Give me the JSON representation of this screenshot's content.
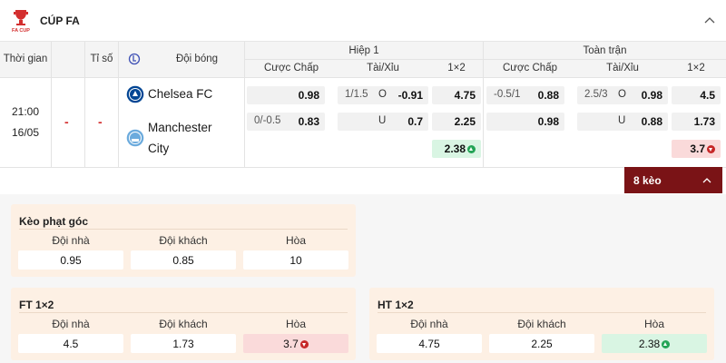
{
  "league": {
    "title": "CÚP FA",
    "logo_icon": "fa-cup-icon",
    "logo_text": "FA CUP"
  },
  "table_header": {
    "time": "Thời gian",
    "blank": "",
    "score": "Tỉ số",
    "live_icon": "live-stream-icon",
    "team": "Đội bóng",
    "half1": "Hiệp 1",
    "full": "Toàn trận",
    "handicap": "Cược Chấp",
    "over_under": "Tài/Xỉu",
    "one_x_two": "1×2"
  },
  "match": {
    "time": "21:00",
    "date": "16/05",
    "score_home": "-",
    "score_away": "-",
    "home": {
      "name": "Chelsea FC",
      "badge": "chelsea-badge-icon",
      "color": "#034694"
    },
    "away": {
      "name_line1": "Manchester",
      "name_line2": "City",
      "badge": "man-city-badge-icon",
      "color": "#6cabdd"
    },
    "h1": {
      "handicap": [
        {
          "line": "",
          "odd": "0.98"
        },
        {
          "line": "0/-0.5",
          "odd": "0.83"
        }
      ],
      "ou": [
        {
          "line": "1/1.5",
          "side": "O",
          "odd": "-0.91"
        },
        {
          "line": "",
          "side": "U",
          "odd": "0.7"
        }
      ],
      "x12": [
        "4.75",
        "2.25",
        "2.38"
      ],
      "draw_trend": "up"
    },
    "ft": {
      "handicap": [
        {
          "line": "-0.5/1",
          "odd": "0.88"
        },
        {
          "line": "",
          "odd": "0.98"
        }
      ],
      "ou": [
        {
          "line": "2.5/3",
          "side": "O",
          "odd": "0.98"
        },
        {
          "line": "",
          "side": "U",
          "odd": "0.88"
        }
      ],
      "x12": [
        "4.5",
        "1.73",
        "3.7"
      ],
      "draw_trend": "down"
    }
  },
  "more_button": {
    "label": "8 kèo"
  },
  "cards": {
    "corner": {
      "title": "Kèo phạt góc",
      "labels": [
        "Đội nhà",
        "Đội khách",
        "Hòa"
      ],
      "values": [
        "0.95",
        "0.85",
        "10"
      ]
    },
    "ft": {
      "title": "FT 1×2",
      "labels": [
        "Đội nhà",
        "Đội khách",
        "Hòa"
      ],
      "values": [
        "4.5",
        "1.73",
        "3.7"
      ]
    },
    "ht": {
      "title": "HT 1×2",
      "labels": [
        "Đội nhà",
        "Đội khách",
        "Hòa"
      ],
      "values": [
        "4.75",
        "2.25",
        "2.38"
      ]
    }
  },
  "colors": {
    "accent": "#7a1316",
    "up": "#23a455",
    "down": "#c62828",
    "card_bg": "#fdf0e4"
  }
}
